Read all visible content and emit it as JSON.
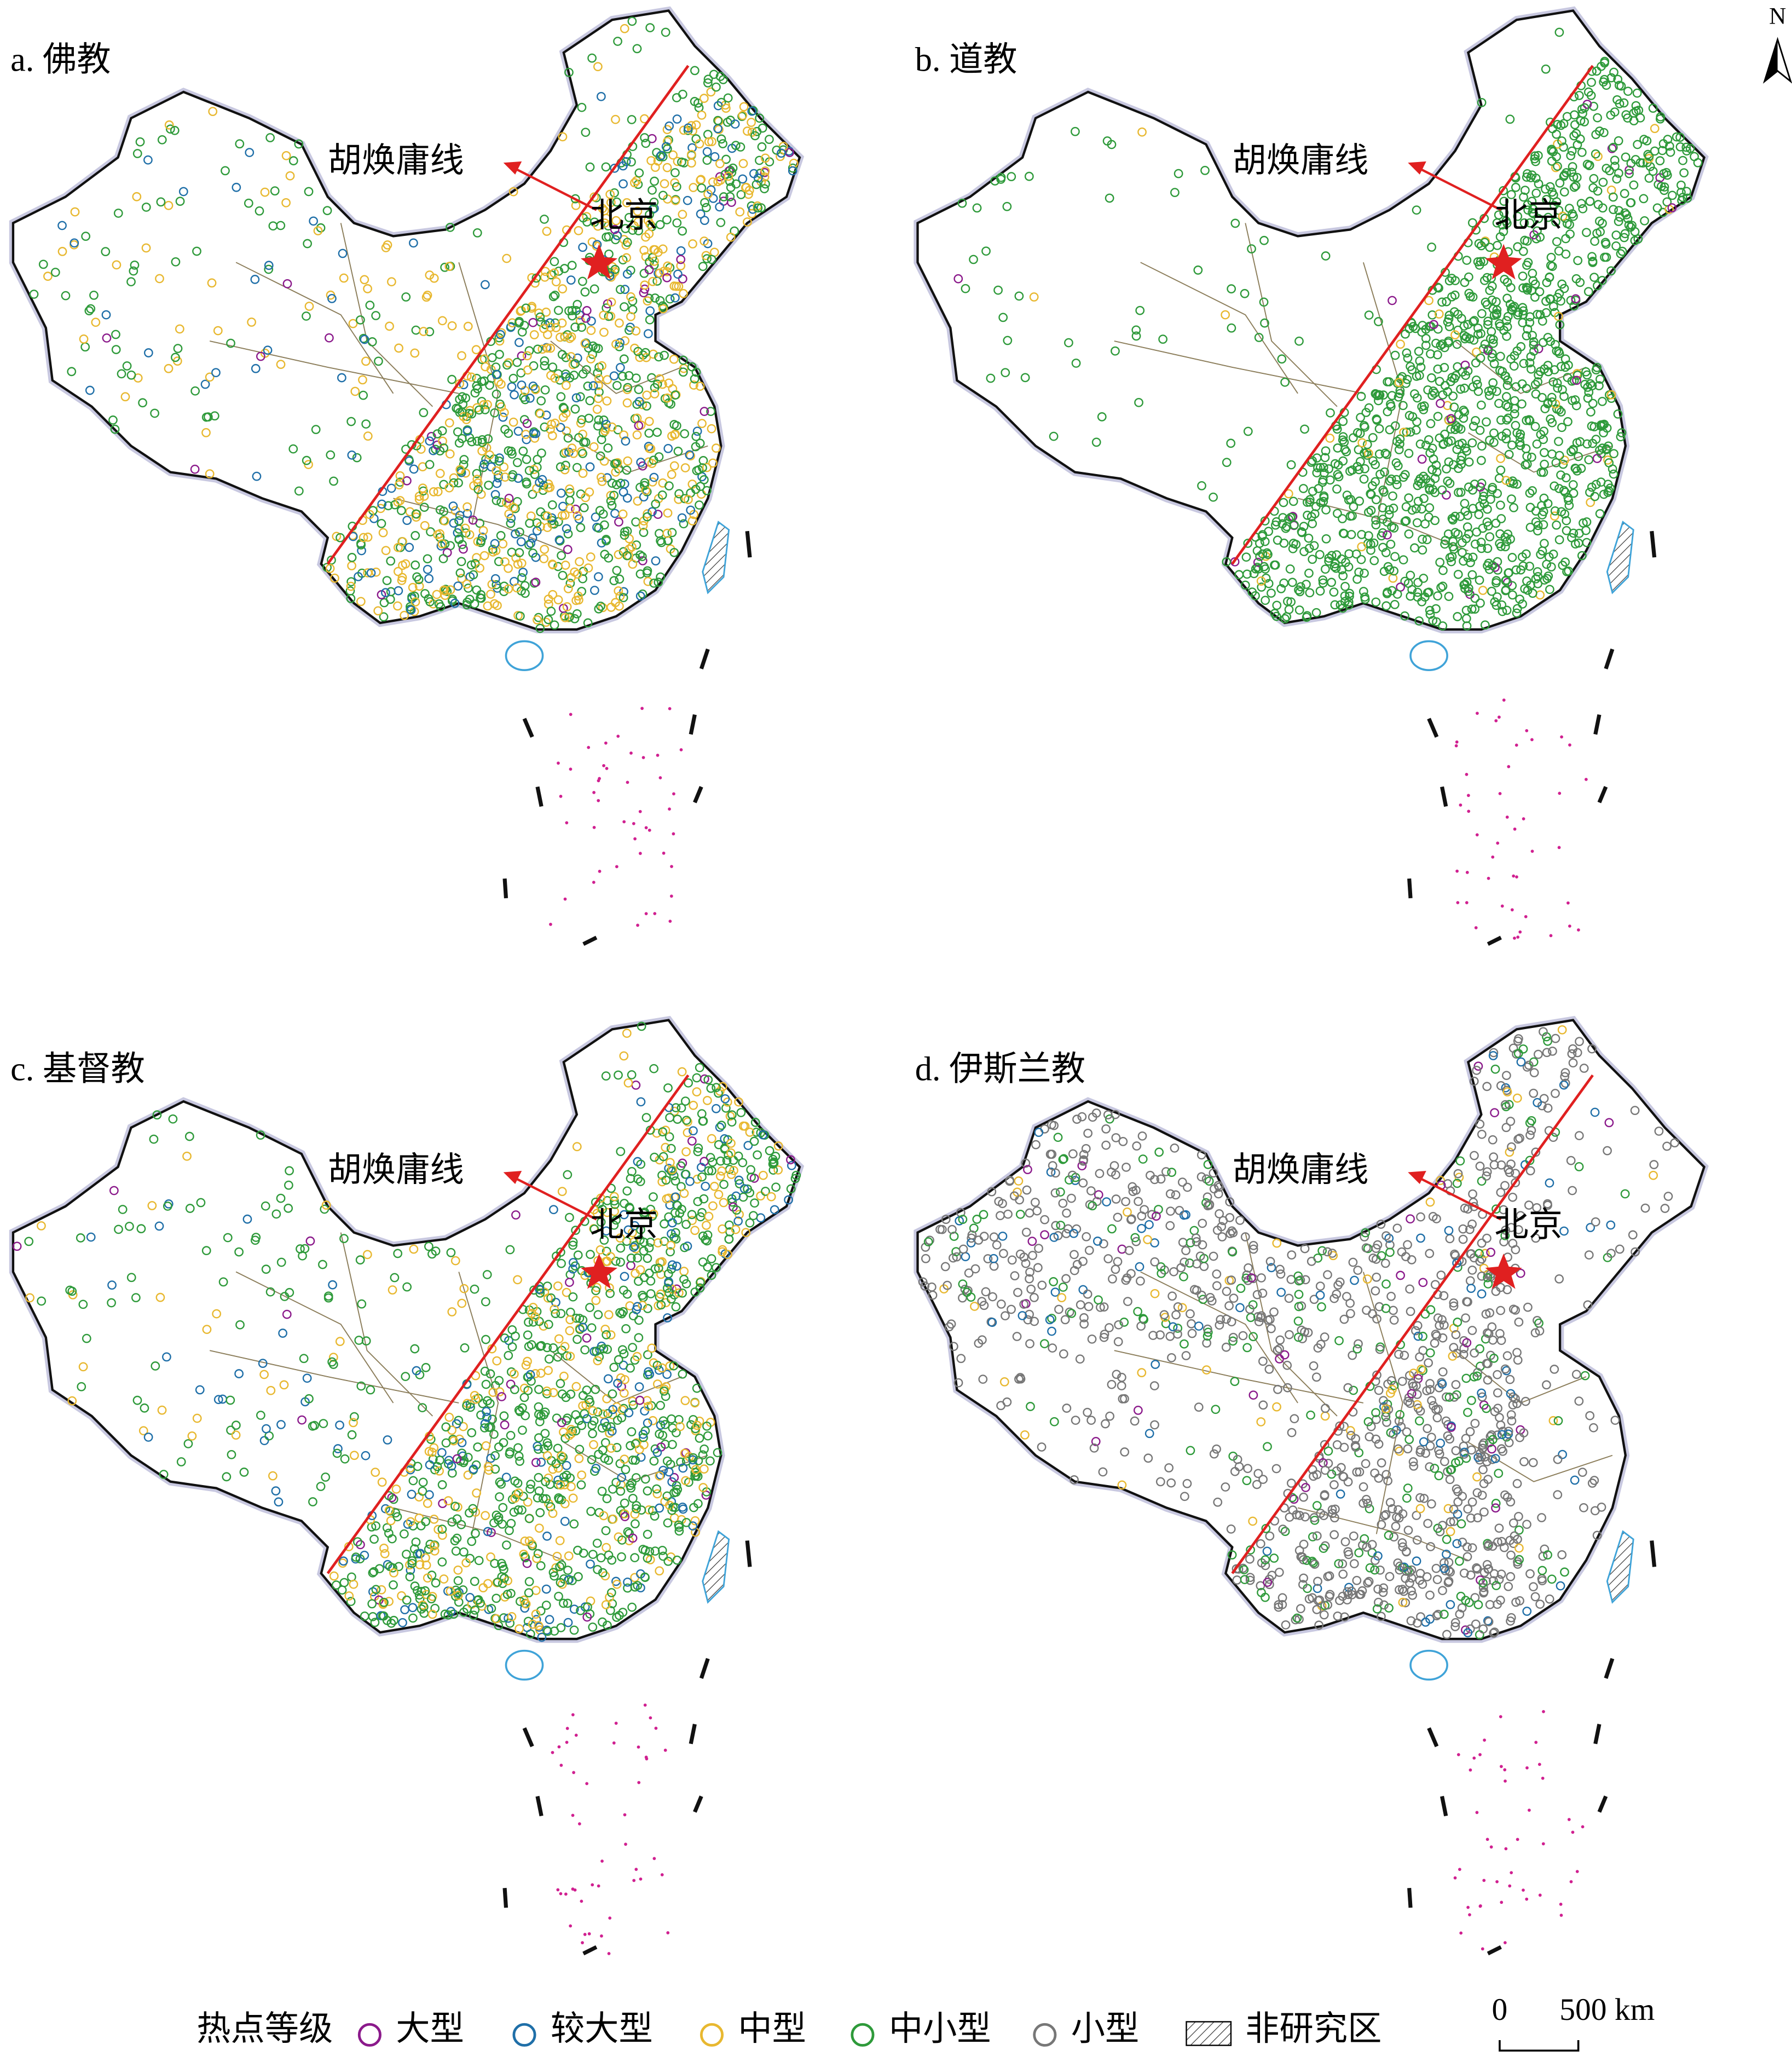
{
  "panels": [
    {
      "title": "a. 佛教"
    },
    {
      "title": "b. 道教"
    },
    {
      "title": "c. 基督教"
    },
    {
      "title": "d. 伊斯兰教"
    }
  ],
  "labels": {
    "hu_line": "胡焕庸线",
    "beijing": "北京"
  },
  "legend": {
    "title": "热点等级",
    "items": [
      "大型",
      "较大型",
      "中型",
      "中小型",
      "小型",
      "非研究区"
    ]
  },
  "scale": {
    "zero": "0",
    "distance": "500 km"
  },
  "north": "N"
}
